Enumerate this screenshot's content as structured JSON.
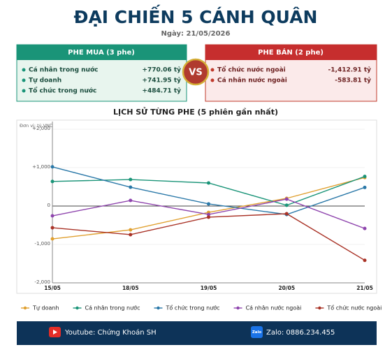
{
  "header": {
    "title": "ĐẠI CHIẾN 5 CÁNH QUÂN",
    "date": "Ngày: 21/05/2026"
  },
  "buy_panel": {
    "title": "PHE MUA  (3 phe)",
    "items": [
      {
        "label": "Cá nhân trong nước",
        "value": "+770.06 tỷ"
      },
      {
        "label": "Tự doanh",
        "value": "+741.95 tỷ"
      },
      {
        "label": "Tổ chức trong nước",
        "value": "+484.71 tỷ"
      }
    ]
  },
  "vs": "VS",
  "sell_panel": {
    "title": "PHE BÁN  (2 phe)",
    "items": [
      {
        "label": "Tổ chức nước ngoài",
        "value": "-1,412.91 tỷ"
      },
      {
        "label": "Cá nhân nước ngoài",
        "value": "-583.81 tỷ"
      }
    ]
  },
  "chart_data": {
    "type": "line",
    "title": "LỊCH SỬ TỪNG PHE (5 phiên gần nhất)",
    "unit_label": "Đơn vị: tỷ VND",
    "categories": [
      "15/05",
      "18/05",
      "19/05",
      "20/05",
      "21/05"
    ],
    "series": [
      {
        "name": "Tự doanh",
        "color": "#e0a030",
        "values": [
          -855,
          -620,
          -165,
          200,
          741.95
        ]
      },
      {
        "name": "Cá nhân trong nước",
        "color": "#1a9478",
        "values": [
          640,
          690,
          600,
          20,
          770.06
        ]
      },
      {
        "name": "Tổ chức trong nước",
        "color": "#2a78a8",
        "values": [
          1020,
          490,
          55,
          -220,
          484.71
        ]
      },
      {
        "name": "Cá nhân nước ngoài",
        "color": "#8e44ad",
        "values": [
          -255,
          145,
          -220,
          180,
          -583.81
        ]
      },
      {
        "name": "Tổ chức nước ngoài",
        "color": "#a93226",
        "values": [
          -565,
          -745,
          -290,
          -200,
          -1412.91
        ]
      }
    ],
    "ylim": [
      -2000,
      2200
    ],
    "yticks": [
      {
        "value": 2000,
        "label": "+2,000"
      },
      {
        "value": 1000,
        "label": "+1,000"
      },
      0,
      {
        "value": -1000,
        "label": "-1,000"
      },
      {
        "value": -2000,
        "label": "-2,000"
      }
    ],
    "grid": true,
    "legend": "bottom"
  },
  "footer": {
    "youtube": "Youtube: Chứng Khoán SH",
    "zalo_icon": "Zalo",
    "zalo": "Zalo: 0886.234.455"
  }
}
